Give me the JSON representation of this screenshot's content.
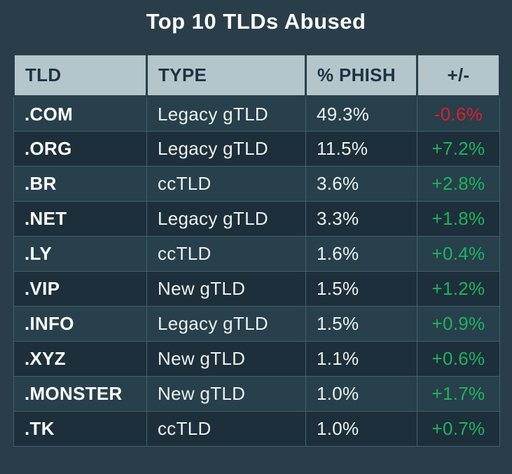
{
  "page": {
    "title": "Top 10 TLDs Abused"
  },
  "colors": {
    "background": "#293e49",
    "header_bg": "#b4c6cc",
    "header_text": "#1d3342",
    "row_odd_bg": "#27404b",
    "row_even_bg": "#1d2f3a",
    "body_text": "#edf1f2",
    "positive_change": "#1fb25f",
    "negative_change": "#e41b2d",
    "cell_border": "#45616c"
  },
  "table": {
    "columns": [
      "TLD",
      "TYPE",
      "% PHISH",
      "+/-"
    ],
    "rows": [
      {
        "tld": ".COM",
        "type": "Legacy gTLD",
        "phish": "49.3%",
        "change": "-0.6%"
      },
      {
        "tld": ".ORG",
        "type": "Legacy gTLD",
        "phish": "11.5%",
        "change": "+7.2%"
      },
      {
        "tld": ".BR",
        "type": "ccTLD",
        "phish": "3.6%",
        "change": "+2.8%"
      },
      {
        "tld": ".NET",
        "type": "Legacy gTLD",
        "phish": "3.3%",
        "change": "+1.8%"
      },
      {
        "tld": ".LY",
        "type": "ccTLD",
        "phish": "1.6%",
        "change": "+0.4%"
      },
      {
        "tld": ".VIP",
        "type": "New gTLD",
        "phish": "1.5%",
        "change": "+1.2%"
      },
      {
        "tld": ".INFO",
        "type": "Legacy gTLD",
        "phish": "1.5%",
        "change": "+0.9%"
      },
      {
        "tld": ".XYZ",
        "type": "New gTLD",
        "phish": "1.1%",
        "change": "+0.6%"
      },
      {
        "tld": ".MONSTER",
        "type": "New gTLD",
        "phish": "1.0%",
        "change": "+1.7%"
      },
      {
        "tld": ".TK",
        "type": "ccTLD",
        "phish": "1.0%",
        "change": "+0.7%"
      }
    ]
  },
  "chart_data": {
    "type": "table",
    "title": "Top 10 TLDs Abused",
    "columns": [
      "TLD",
      "TYPE",
      "% PHISH",
      "+/-"
    ],
    "tlds": [
      ".COM",
      ".ORG",
      ".BR",
      ".NET",
      ".LY",
      ".VIP",
      ".INFO",
      ".XYZ",
      ".MONSTER",
      ".TK"
    ],
    "types": [
      "Legacy gTLD",
      "Legacy gTLD",
      "ccTLD",
      "Legacy gTLD",
      "ccTLD",
      "New gTLD",
      "Legacy gTLD",
      "New gTLD",
      "New gTLD",
      "ccTLD"
    ],
    "phish_percent": [
      49.3,
      11.5,
      3.6,
      3.3,
      1.6,
      1.5,
      1.5,
      1.1,
      1.0,
      1.0
    ],
    "change_percent": [
      -0.6,
      7.2,
      2.8,
      1.8,
      0.4,
      1.2,
      0.9,
      0.6,
      1.7,
      0.7
    ]
  }
}
